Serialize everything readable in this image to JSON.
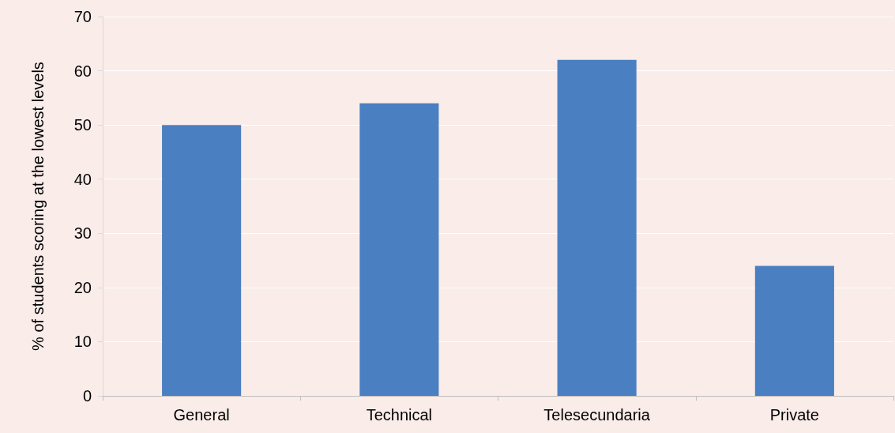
{
  "chart_data": {
    "type": "bar",
    "ylabel": "% of students scoring at the lowest levels",
    "categories": [
      "General",
      "Technical",
      "Telesecundaria",
      "Private"
    ],
    "values": [
      50,
      54,
      62,
      24
    ],
    "color": "#4a7fc1",
    "ylim": [
      0,
      70
    ],
    "yticks": [
      0,
      10,
      20,
      30,
      40,
      50,
      60,
      70
    ],
    "grid": "y"
  }
}
